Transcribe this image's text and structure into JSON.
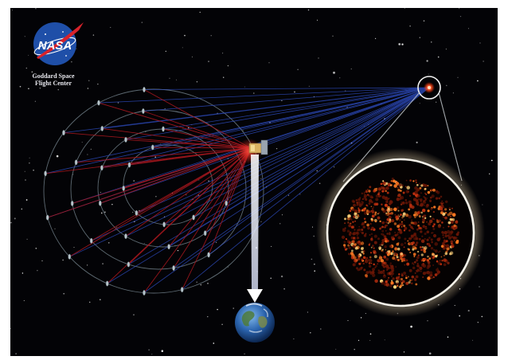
{
  "logo": {
    "wordmark": "NASA",
    "caption_line1": "Goddard Space",
    "caption_line2": "Flight Center"
  },
  "colors": {
    "background": "#030306",
    "nasa_blue": "#1f4fa8",
    "nasa_red": "#d8222a",
    "starlight_beams": "#2f4fc8",
    "reflected_beams": "#b0181f",
    "mirror_rings": "#7c8a90",
    "star_glow": "#ff5a2a",
    "earth_ocean": "#1f5fb0"
  },
  "scene": {
    "elements": [
      "nasa-logo",
      "mirror-formation",
      "beam-combiner-spacecraft",
      "downlink-arrow",
      "earth",
      "target-star",
      "magnified-star-surface"
    ]
  }
}
